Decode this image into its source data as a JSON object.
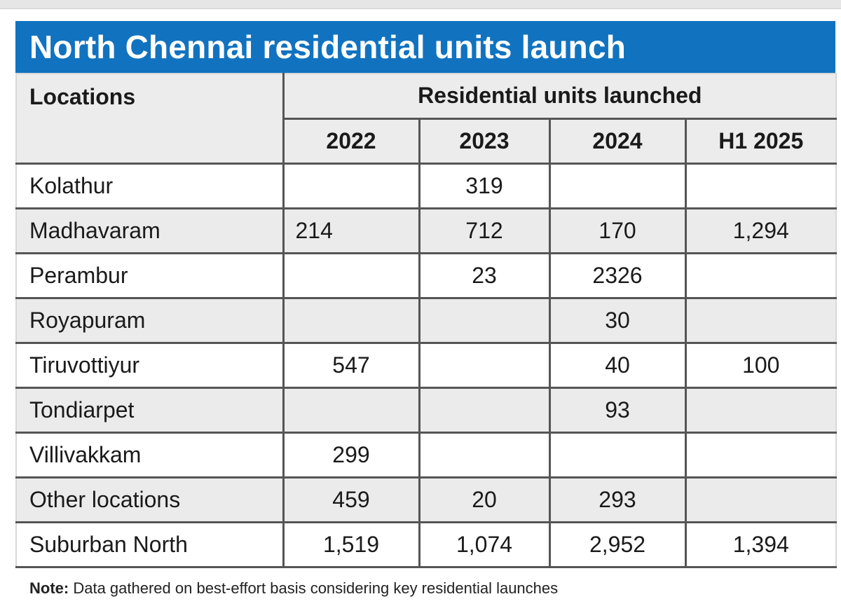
{
  "title": "North Chennai residential units launch",
  "header": {
    "locations_label": "Locations",
    "group_label": "Residential units launched",
    "years": [
      "2022",
      "2023",
      "2024",
      "H1 2025"
    ]
  },
  "rows": [
    {
      "location": "Kolathur",
      "values": [
        "",
        "319",
        "",
        ""
      ]
    },
    {
      "location": "Madhavaram",
      "values": [
        "214",
        "712",
        "170",
        "1,294"
      ]
    },
    {
      "location": "Perambur",
      "values": [
        "",
        "23",
        "2326",
        ""
      ]
    },
    {
      "location": "Royapuram",
      "values": [
        "",
        "",
        "30",
        ""
      ]
    },
    {
      "location": "Tiruvottiyur",
      "values": [
        "547",
        "",
        "40",
        "100"
      ]
    },
    {
      "location": "Tondiarpet",
      "values": [
        "",
        "",
        "93",
        ""
      ]
    },
    {
      "location": "Villivakkam",
      "values": [
        "299",
        "",
        "",
        ""
      ]
    },
    {
      "location": "Other locations",
      "values": [
        "459",
        "20",
        "293",
        ""
      ]
    },
    {
      "location": "Suburban North",
      "values": [
        "1,519",
        "1,074",
        "2,952",
        "1,394"
      ]
    }
  ],
  "note": {
    "label": "Note:",
    "text": "Data gathered on best-effort basis considering key residential launches"
  },
  "colors": {
    "title_bar": "#1173c0",
    "shaded_row": "#ebebeb"
  }
}
